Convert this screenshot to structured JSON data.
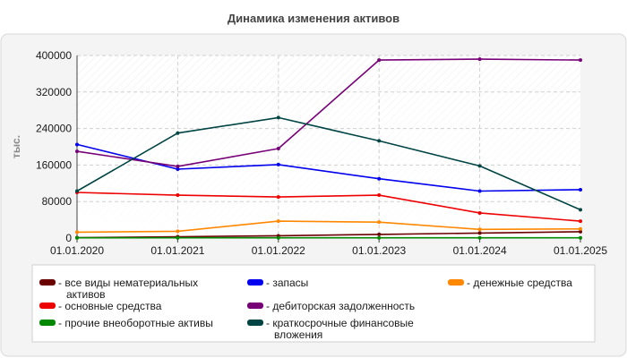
{
  "chart_data": {
    "type": "line",
    "title": "Динамика изменения активов",
    "ylabel": "тыс.",
    "xlabel": "",
    "x": [
      "01.01.2020",
      "01.01.2021",
      "01.01.2022",
      "01.01.2023",
      "01.01.2024",
      "01.01.2025"
    ],
    "y_ticks": [
      "0",
      "80000",
      "160000",
      "240000",
      "320000",
      "400000"
    ],
    "ylim": [
      0,
      400000
    ],
    "grid": true,
    "legend_position": "bottom",
    "series": [
      {
        "name": "- все виды нематериальных активов",
        "color": "#6b0000",
        "values": [
          1000,
          3000,
          5000,
          8000,
          11000,
          14000
        ]
      },
      {
        "name": "- основные средства",
        "color": "#ee0000",
        "values": [
          100000,
          94000,
          90000,
          94000,
          55000,
          37000
        ]
      },
      {
        "name": "- прочие внеоборотные активы",
        "color": "#008800",
        "values": [
          500,
          500,
          500,
          500,
          500,
          500
        ]
      },
      {
        "name": "- запасы",
        "color": "#0000ee",
        "values": [
          205000,
          151000,
          161000,
          130000,
          103000,
          106000
        ]
      },
      {
        "name": "- дебиторская задолженность",
        "color": "#770077",
        "values": [
          190000,
          157000,
          196000,
          390000,
          392000,
          390000
        ]
      },
      {
        "name": "- краткосрочные финансовые вложения",
        "color": "#004444",
        "values": [
          103000,
          230000,
          264000,
          213000,
          158000,
          62000
        ]
      },
      {
        "name": "- денежные средства",
        "color": "#ff8800",
        "values": [
          13000,
          15000,
          37000,
          35000,
          19000,
          20000
        ]
      }
    ]
  }
}
